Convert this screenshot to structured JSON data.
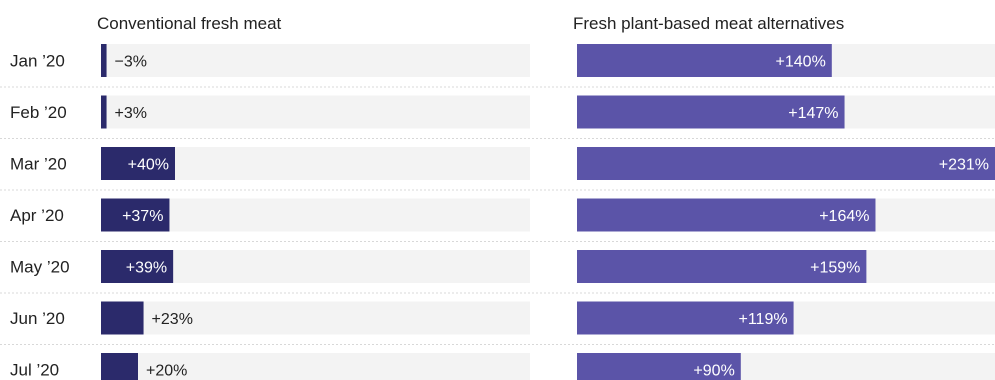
{
  "chart_data": {
    "type": "bar",
    "categories": [
      "Jan ’20",
      "Feb ’20",
      "Mar ’20",
      "Apr ’20",
      "May ’20",
      "Jun ’20",
      "Jul ’20"
    ],
    "panels": [
      {
        "title": "Conventional fresh meat",
        "value_labels": [
          "−3%",
          "+3%",
          "+40%",
          "+37%",
          "+39%",
          "+23%",
          "+20%"
        ],
        "values": [
          -3,
          3,
          40,
          37,
          39,
          23,
          20
        ],
        "color": "#2b2a6b"
      },
      {
        "title": "Fresh plant-based meat alternatives",
        "value_labels": [
          "+140%",
          "+147%",
          "+231%",
          "+164%",
          "+159%",
          "+119%",
          "+90%"
        ],
        "values": [
          140,
          147,
          231,
          164,
          159,
          119,
          90
        ],
        "color": "#5b54a8"
      }
    ],
    "track_color": "#f3f3f3",
    "divider_color": "#d8d8d8"
  }
}
